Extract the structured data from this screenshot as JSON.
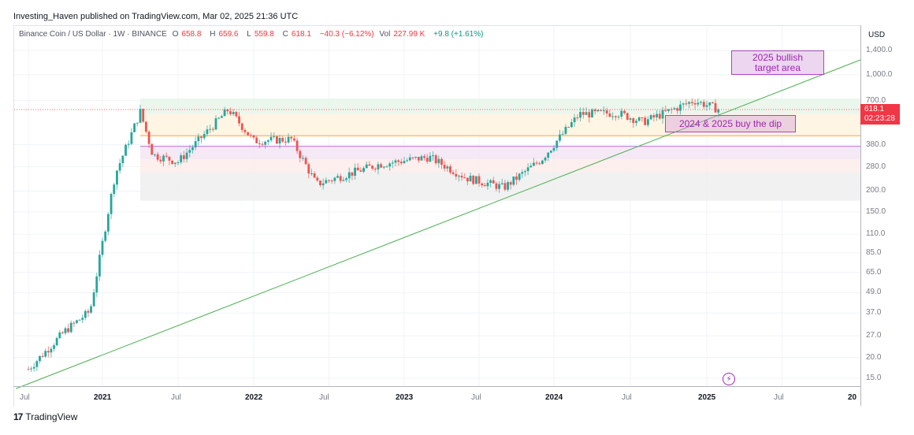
{
  "header": {
    "publisher": "Investing_Haven published on TradingView.com, Mar 02, 2025 21:36 UTC"
  },
  "legend": {
    "symbol": "Binance Coin / US Dollar · 1W · BINANCE",
    "open_label": "O",
    "open": "658.8",
    "high_label": "H",
    "high": "659.6",
    "low_label": "L",
    "low": "559.8",
    "close_label": "C",
    "close": "618.1",
    "change": "−40.3 (−6.12%)",
    "vol_label": "Vol",
    "vol": "227.99 K",
    "vol_change": "+9.8 (+1.61%)"
  },
  "price_axis": {
    "currency": "USD",
    "last_price": "618.1",
    "countdown": "02:23:28"
  },
  "annotations": {
    "target": "2025 bullish target area",
    "target_line1": "2025 bullish",
    "target_line2": "target area",
    "dip": "2024 & 2025 buy the dip"
  },
  "footer": {
    "brand": "TradingView",
    "brand_logo": "17"
  },
  "colors": {
    "up": "#26a69a",
    "down": "#ef5350",
    "trendline": "#4caf50",
    "annotation_fill": "#e1bee7",
    "annotation_border": "#ab47bc",
    "last_price_bg": "#f23645"
  },
  "chart_data": {
    "type": "candlestick",
    "title": "Binance Coin / US Dollar · 1W · BINANCE",
    "xlabel": "",
    "ylabel": "USD",
    "scale": "log",
    "y_ticks": [
      1400,
      1000,
      700,
      380,
      280,
      200,
      150,
      110,
      85,
      65,
      49,
      37,
      27,
      20,
      15
    ],
    "x_ticks": [
      "Jul",
      "2021",
      "Jul",
      "2022",
      "Jul",
      "2023",
      "Jul",
      "2024",
      "Jul",
      "2025",
      "Jul",
      "20"
    ],
    "ylim": [
      13,
      1600
    ],
    "last_close": 618.1,
    "approx_weekly_closes": {
      "2020-07": 17,
      "2020-10": 29,
      "2020-12": 38,
      "2021-02": 250,
      "2021-04": 600,
      "2021-05": 330,
      "2021-07": 300,
      "2021-11": 620,
      "2022-01": 400,
      "2022-04": 410,
      "2022-06": 220,
      "2022-11": 290,
      "2023-03": 320,
      "2023-06": 240,
      "2023-09": 210,
      "2023-12": 310,
      "2024-03": 580,
      "2024-06": 590,
      "2024-08": 520,
      "2024-12": 700,
      "2025-02": 618.1
    },
    "horizontal_zones": [
      {
        "from": 580,
        "to": 720,
        "color": "#e8f5e9",
        "label": "green zone"
      },
      {
        "from": 430,
        "to": 580,
        "color": "#fff3e0",
        "label": "orange zone"
      },
      {
        "level": 430,
        "color": "#ffb74d",
        "label": "orange line"
      },
      {
        "level": 370,
        "color": "#ab47bc",
        "label": "purple line"
      },
      {
        "from": 310,
        "to": 370,
        "color": "#f3e5f5",
        "label": "purple zone"
      },
      {
        "from": 260,
        "to": 310,
        "color": "#fdecea",
        "label": "red zone"
      },
      {
        "from": 175,
        "to": 260,
        "color": "#eeeeee",
        "label": "grey zone"
      }
    ],
    "trendline": {
      "from": {
        "date": "2020-06",
        "price": 13
      },
      "to": {
        "date": "2025-10",
        "price": 1250
      }
    },
    "annotations": [
      {
        "text": "2025 bullish target area",
        "approx_price_range": [
          1000,
          1400
        ],
        "approx_date": "2025-03..2025-08"
      },
      {
        "text": "2024 & 2025 buy the dip",
        "approx_price_range": [
          520,
          600
        ],
        "approx_date": "2024-09..2025-05"
      }
    ]
  }
}
